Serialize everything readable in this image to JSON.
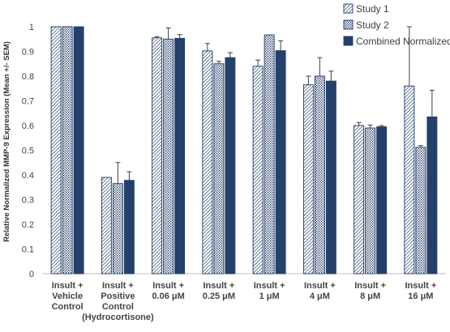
{
  "chart_data": {
    "type": "bar",
    "title": "",
    "xlabel": "",
    "ylabel": "Relative Normalized MMP-9 Expression (Mean +/- SEM)",
    "ylim": [
      0,
      1
    ],
    "yticks": [
      "0",
      "0.1",
      "0.2",
      "0.3",
      "0.4",
      "0.5",
      "0.6",
      "0.7",
      "0.8",
      "0.9",
      "1"
    ],
    "grid": false,
    "legend_position": "top-right",
    "categories": [
      [
        "Insult +",
        "Vehicle",
        "Control"
      ],
      [
        "Insult +",
        "Positive",
        "Control",
        "(Hydrocortisone)"
      ],
      [
        "Insult +",
        "0.06 μM"
      ],
      [
        "Insult +",
        "0.25 μM"
      ],
      [
        "Insult +",
        "1 μM"
      ],
      [
        "Insult +",
        "4 μM"
      ],
      [
        "Insult +",
        "8 μM"
      ],
      [
        "Insult +",
        "16 μM"
      ]
    ],
    "series": [
      {
        "name": "Study 1",
        "pattern": "diagonal-hatch",
        "color": "#1f3864",
        "values": [
          1.0,
          0.39,
          0.955,
          0.902,
          0.84,
          0.765,
          0.6,
          0.76
        ],
        "errors": [
          0,
          0,
          0.005,
          0.03,
          0.025,
          0.035,
          0.012,
          0.24
        ]
      },
      {
        "name": "Study 2",
        "pattern": "cross-hatch",
        "color": "#1f3864",
        "values": [
          1.0,
          0.365,
          0.95,
          0.85,
          0.967,
          0.8,
          0.59,
          0.512
        ],
        "errors": [
          0,
          0.085,
          0.045,
          0.01,
          0,
          0.075,
          0.012,
          0.007
        ]
      },
      {
        "name": "Combined Normalized",
        "pattern": "solid",
        "color": "#24416b",
        "values": [
          1.0,
          0.378,
          0.953,
          0.875,
          0.903,
          0.78,
          0.595,
          0.635
        ],
        "errors": [
          0,
          0.035,
          0.015,
          0.02,
          0.04,
          0.04,
          0.005,
          0.108
        ]
      }
    ]
  }
}
